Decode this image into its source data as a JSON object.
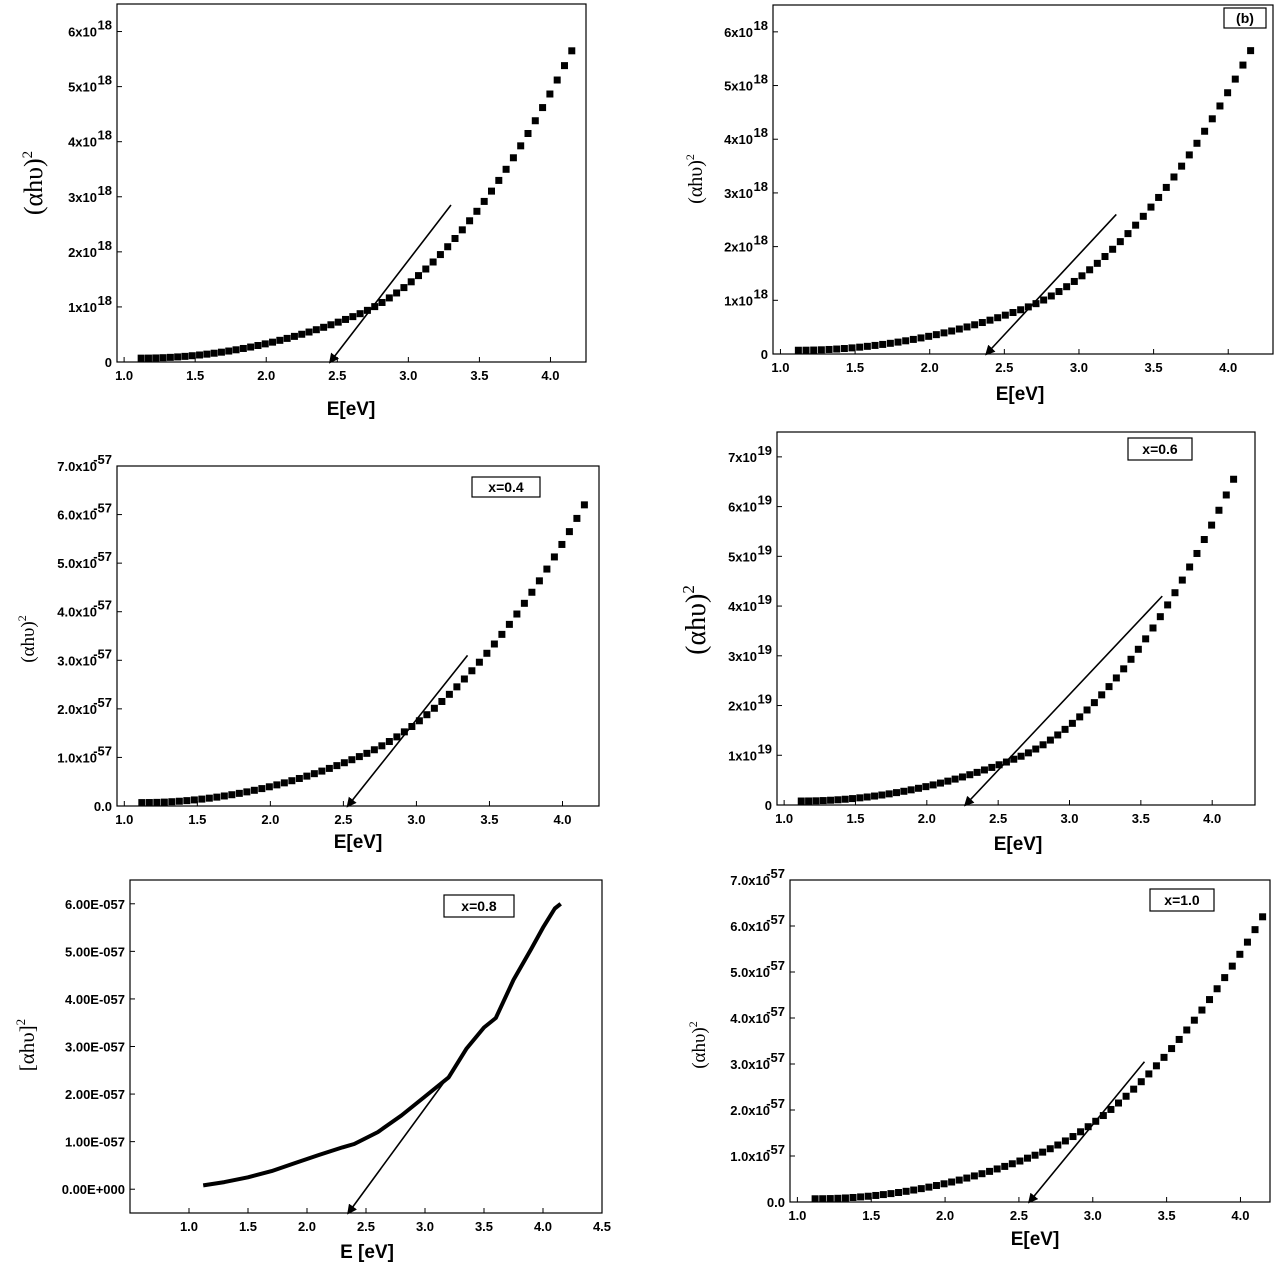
{
  "chart_data": [
    {
      "type": "scatter",
      "label": "",
      "ylabel": "(αhυ)",
      "ylabel_sup": "2",
      "xlabel": "E[eV]",
      "xlim": [
        0.95,
        4.25
      ],
      "ylim": [
        0,
        6.5
      ],
      "xticks": [
        "1.0",
        "1.5",
        "2.0",
        "2.5",
        "3.0",
        "3.5",
        "4.0"
      ],
      "yticks": [
        "0",
        "1x10",
        "2x10",
        "3x10",
        "4x10",
        "5x10",
        "6x10"
      ],
      "ytick_exp": "18",
      "series_shape": "convex",
      "series": [
        {
          "x_start": 1.12,
          "x_end": 4.15,
          "y_start": 0.07,
          "y_mid": 0.85,
          "y_end": 5.65
        }
      ],
      "tangent": {
        "x1": 3.3,
        "y1": 2.85,
        "x2": 2.45,
        "y2": 0.0
      }
    },
    {
      "type": "scatter",
      "label": "(b)",
      "ylabel": "(αhυ)",
      "ylabel_sup": "2",
      "xlabel": "E[eV]",
      "xlim": [
        0.95,
        4.3
      ],
      "ylim": [
        0,
        6.5
      ],
      "xticks": [
        "1.0",
        "1.5",
        "2.0",
        "2.5",
        "3.0",
        "3.5",
        "4.0"
      ],
      "yticks": [
        "0",
        "1x10",
        "2x10",
        "3x10",
        "4x10",
        "5x10",
        "6x10"
      ],
      "ytick_exp": "18",
      "series_shape": "convex",
      "series": [
        {
          "x_start": 1.12,
          "x_end": 4.15,
          "y_start": 0.07,
          "y_mid": 0.85,
          "y_end": 5.65
        }
      ],
      "tangent": {
        "x1": 3.25,
        "y1": 2.6,
        "x2": 2.38,
        "y2": 0.0
      }
    },
    {
      "type": "scatter",
      "label": "x=0.4",
      "ylabel": "(αhυ)",
      "ylabel_sup": "2",
      "xlabel": "E[eV]",
      "xlim": [
        0.95,
        4.25
      ],
      "ylim": [
        0,
        7.0
      ],
      "xticks": [
        "1.0",
        "1.5",
        "2.0",
        "2.5",
        "3.0",
        "3.5",
        "4.0"
      ],
      "yticks": [
        "0.0",
        "1.0x10",
        "2.0x10",
        "3.0x10",
        "4.0x10",
        "5.0x10",
        "6.0x10",
        "7.0x10"
      ],
      "ytick_exp": "-57",
      "series_shape": "convex",
      "series": [
        {
          "x_start": 1.12,
          "x_end": 4.15,
          "y_start": 0.07,
          "y_mid": 1.05,
          "y_end": 6.2
        }
      ],
      "tangent": {
        "x1": 3.35,
        "y1": 3.1,
        "x2": 2.53,
        "y2": 0.0
      }
    },
    {
      "type": "scatter",
      "label": "x=0.6",
      "ylabel": "(αhυ)",
      "ylabel_sup": "2",
      "xlabel": "E[eV]",
      "xlim": [
        0.95,
        4.3
      ],
      "ylim": [
        0,
        7.5
      ],
      "xticks": [
        "1.0",
        "1.5",
        "2.0",
        "2.5",
        "3.0",
        "3.5",
        "4.0"
      ],
      "yticks": [
        "0",
        "1x10",
        "2x10",
        "3x10",
        "4x10",
        "5x10",
        "6x10",
        "7x10"
      ],
      "ytick_exp": "19",
      "series_shape": "convex",
      "series": [
        {
          "x_start": 1.12,
          "x_end": 4.15,
          "y_start": 0.08,
          "y_mid": 0.95,
          "y_end": 6.55
        }
      ],
      "tangent": {
        "x1": 3.65,
        "y1": 4.2,
        "x2": 2.27,
        "y2": 0.0
      }
    },
    {
      "type": "line",
      "label": "x=0.8",
      "ylabel": "[αhυ]",
      "ylabel_sup": "2",
      "xlabel": "E [eV]",
      "xlim": [
        0.5,
        4.5
      ],
      "ylim": [
        -0.5,
        6.5
      ],
      "xticks": [
        "1.0",
        "1.5",
        "2.0",
        "2.5",
        "3.0",
        "3.5",
        "4.0",
        "4.5"
      ],
      "yticks": [
        "0.00E+000",
        "1.00E-057",
        "2.00E-057",
        "3.00E-057",
        "4.00E-057",
        "5.00E-057",
        "6.00E-057"
      ],
      "ytick_exp": "",
      "series_shape": "points",
      "series": [
        {
          "points": [
            [
              1.12,
              0.08
            ],
            [
              1.3,
              0.15
            ],
            [
              1.5,
              0.25
            ],
            [
              1.7,
              0.38
            ],
            [
              1.9,
              0.55
            ],
            [
              2.1,
              0.72
            ],
            [
              2.3,
              0.88
            ],
            [
              2.4,
              0.95
            ],
            [
              2.6,
              1.2
            ],
            [
              2.8,
              1.55
            ],
            [
              3.0,
              1.95
            ],
            [
              3.2,
              2.35
            ],
            [
              3.35,
              2.95
            ],
            [
              3.5,
              3.4
            ],
            [
              3.6,
              3.6
            ],
            [
              3.75,
              4.4
            ],
            [
              3.9,
              5.05
            ],
            [
              4.0,
              5.5
            ],
            [
              4.1,
              5.9
            ],
            [
              4.15,
              6.0
            ]
          ]
        }
      ],
      "tangent": {
        "x1": 3.2,
        "y1": 2.38,
        "x2": 2.35,
        "y2": -0.5
      }
    },
    {
      "type": "scatter",
      "label": "x=1.0",
      "ylabel": "(αhυ)",
      "ylabel_sup": "2",
      "xlabel": "E[eV]",
      "xlim": [
        0.95,
        4.2
      ],
      "ylim": [
        0,
        7.0
      ],
      "xticks": [
        "1.0",
        "1.5",
        "2.0",
        "2.5",
        "3.0",
        "3.5",
        "4.0"
      ],
      "yticks": [
        "0.0",
        "1.0x10",
        "2.0x10",
        "3.0x10",
        "4.0x10",
        "5.0x10",
        "6.0x10",
        "7.0x10"
      ],
      "ytick_exp": "-57",
      "series_shape": "convex",
      "series": [
        {
          "x_start": 1.12,
          "x_end": 4.15,
          "y_start": 0.07,
          "y_mid": 1.05,
          "y_end": 6.2
        }
      ],
      "tangent": {
        "x1": 3.35,
        "y1": 3.05,
        "x2": 2.57,
        "y2": 0.0
      }
    }
  ]
}
